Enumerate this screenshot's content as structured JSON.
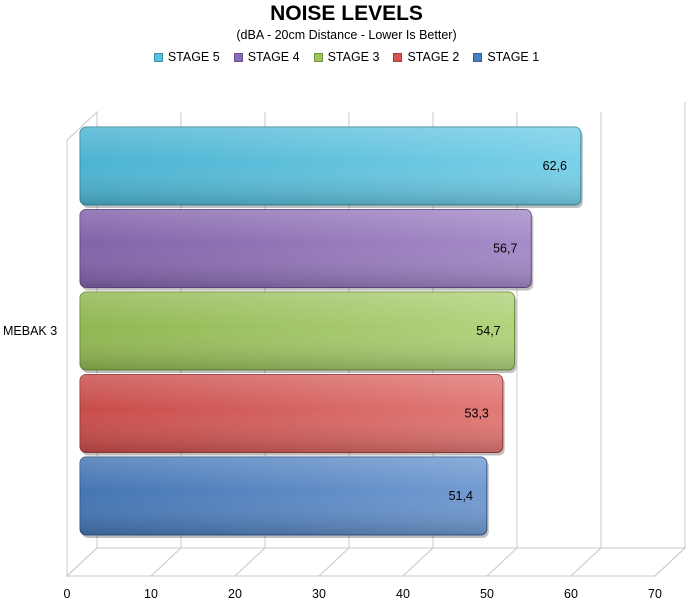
{
  "chart_data": {
    "type": "bar",
    "orientation": "horizontal",
    "title": "NOISE LEVELS",
    "subtitle": "(dBA - 20cm Distance - Lower Is Better)",
    "categories": [
      "MEBAK 3"
    ],
    "series": [
      {
        "name": "STAGE 5",
        "values": [
          62.6
        ],
        "label": "62,6",
        "color": "#52c3e3"
      },
      {
        "name": "STAGE 4",
        "values": [
          56.7
        ],
        "label": "56,7",
        "color": "#8b6bb8"
      },
      {
        "name": "STAGE 3",
        "values": [
          54.7
        ],
        "label": "54,7",
        "color": "#9cc758"
      },
      {
        "name": "STAGE 2",
        "values": [
          53.3
        ],
        "label": "53,3",
        "color": "#d9534f"
      },
      {
        "name": "STAGE 1",
        "values": [
          51.4
        ],
        "label": "51,4",
        "color": "#4a7fc4"
      }
    ],
    "xlim": [
      0,
      70
    ],
    "xticks": [
      "0",
      "10",
      "20",
      "30",
      "40",
      "50",
      "60",
      "70"
    ],
    "grid": true,
    "legend_position": "top"
  }
}
